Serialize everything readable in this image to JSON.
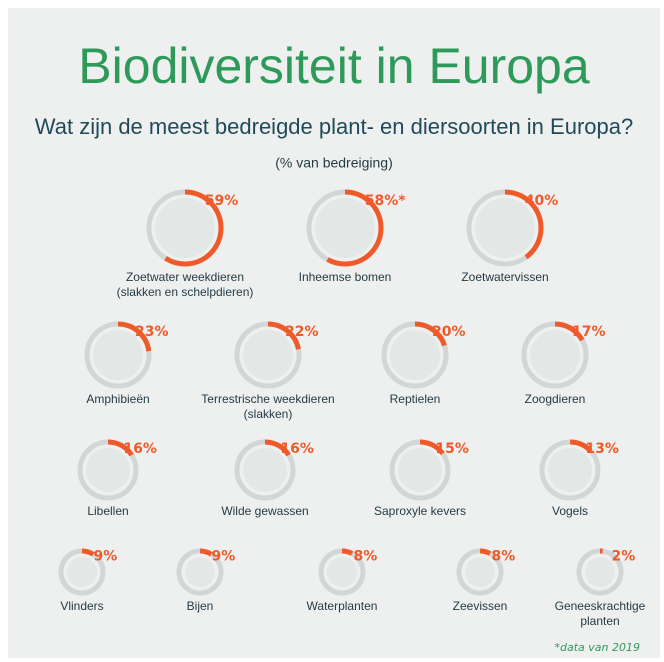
{
  "header": {
    "title": "Biodiversiteit in Europa",
    "subtitle": "Wat zijn de meest bedreigde plant- en diersoorten in Europa?",
    "unit": "(% van bedreiging)"
  },
  "items": [
    {
      "label": [
        "Zoetwater weekdieren",
        "(slakken en schelpdieren)"
      ],
      "value": 59,
      "value_label": "59%"
    },
    {
      "label": [
        "Inheemse bomen"
      ],
      "value": 58,
      "value_label": "58%*"
    },
    {
      "label": [
        "Zoetwatervissen"
      ],
      "value": 40,
      "value_label": "40%"
    },
    {
      "label": [
        "Amphibieën"
      ],
      "value": 23,
      "value_label": "23%"
    },
    {
      "label": [
        "Terrestrische weekdieren",
        "(slakken)"
      ],
      "value": 22,
      "value_label": "22%"
    },
    {
      "label": [
        "Reptielen"
      ],
      "value": 20,
      "value_label": "20%"
    },
    {
      "label": [
        "Zoogdieren"
      ],
      "value": 17,
      "value_label": "17%"
    },
    {
      "label": [
        "Libellen"
      ],
      "value": 16,
      "value_label": "16%"
    },
    {
      "label": [
        "Wilde gewassen"
      ],
      "value": 16,
      "value_label": "16%"
    },
    {
      "label": [
        "Saproxyle kevers"
      ],
      "value": 15,
      "value_label": "15%"
    },
    {
      "label": [
        "Vogels"
      ],
      "value": 13,
      "value_label": "13%"
    },
    {
      "label": [
        "Vlinders"
      ],
      "value": 9,
      "value_label": "9%"
    },
    {
      "label": [
        "Bijen"
      ],
      "value": 9,
      "value_label": "9%"
    },
    {
      "label": [
        "Waterplanten"
      ],
      "value": 8,
      "value_label": "8%"
    },
    {
      "label": [
        "Zeevissen"
      ],
      "value": 8,
      "value_label": "8%"
    },
    {
      "label": [
        "Geneeskrachtige",
        "planten"
      ],
      "value": 2,
      "value_label": "2%"
    }
  ],
  "note": "*data van 2019"
}
